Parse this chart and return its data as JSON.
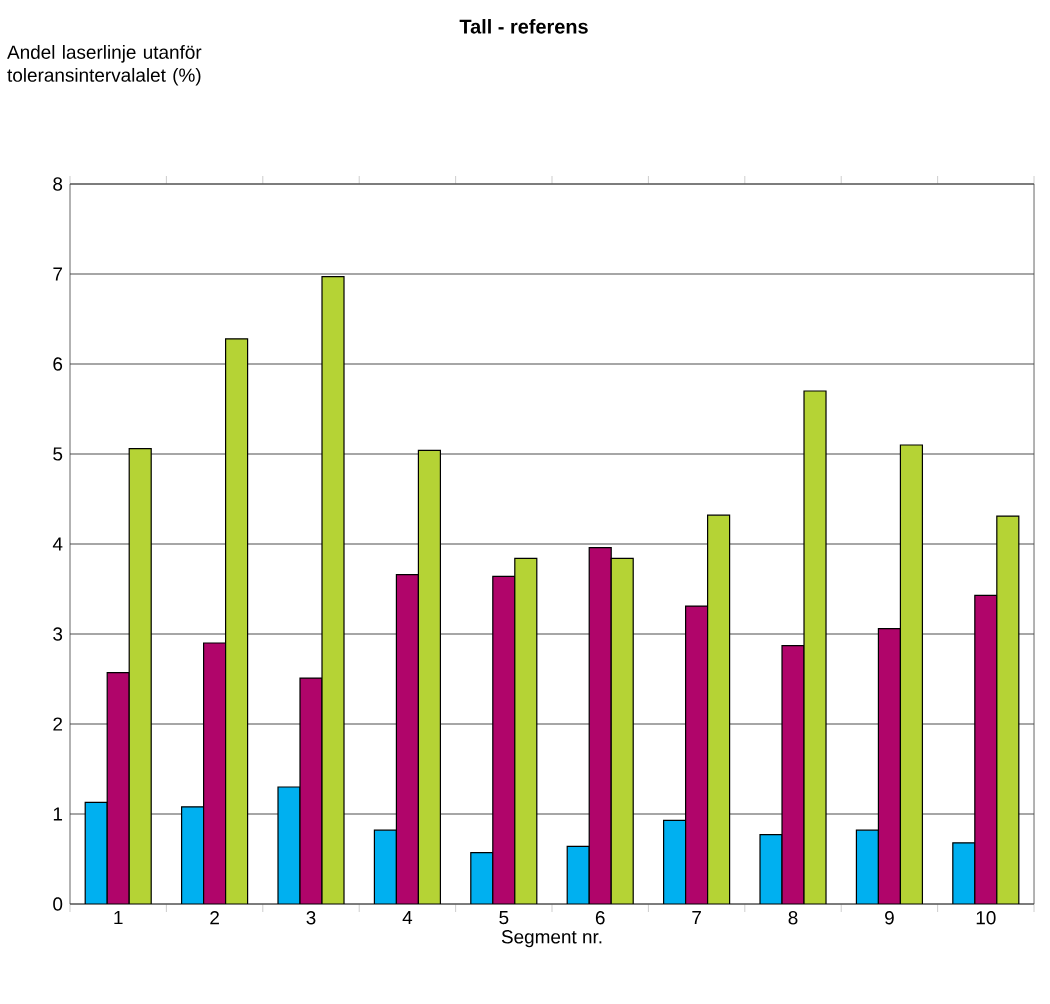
{
  "chart_data": {
    "type": "bar",
    "title": "Tall - referens",
    "ylabel": "Andel laserlinje utanför toleransintervalalet (%)",
    "xlabel": "Segment  nr.",
    "categories": [
      "1",
      "2",
      "3",
      "4",
      "5",
      "6",
      "7",
      "8",
      "9",
      "10"
    ],
    "series": [
      {
        "color": "#00b0f0",
        "values": [
          1.13,
          1.08,
          1.3,
          0.82,
          0.57,
          0.64,
          0.93,
          0.77,
          0.82,
          0.68
        ]
      },
      {
        "color": "#b0056a",
        "values": [
          2.57,
          2.9,
          2.51,
          3.66,
          3.64,
          3.96,
          3.31,
          2.87,
          3.06,
          3.43
        ]
      },
      {
        "color": "#b5d335",
        "values": [
          5.06,
          6.28,
          6.97,
          5.04,
          3.84,
          3.84,
          4.32,
          5.7,
          5.1,
          4.31
        ]
      }
    ],
    "ylim": [
      0,
      8
    ],
    "yticks": [
      0,
      1,
      2,
      3,
      4,
      5,
      6,
      7,
      8
    ],
    "grid": "y"
  }
}
